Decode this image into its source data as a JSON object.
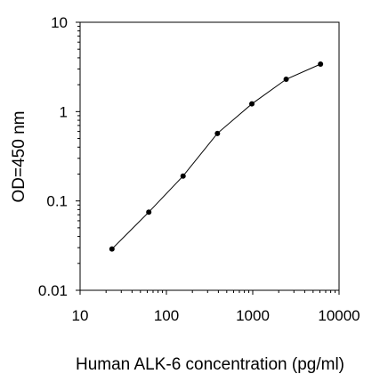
{
  "chart_data": {
    "type": "scatter",
    "title": "",
    "xlabel": "Human ALK-6 concentration (pg/ml)",
    "ylabel": "OD=450 nm",
    "x_scale": "log",
    "y_scale": "log",
    "xlim": [
      10,
      10000
    ],
    "ylim": [
      0.01,
      10
    ],
    "x_ticks": [
      10,
      100,
      1000,
      10000
    ],
    "x_tick_labels": [
      "10",
      "100",
      "1000",
      "10000"
    ],
    "y_ticks": [
      0.01,
      0.1,
      1,
      10
    ],
    "y_tick_labels": [
      "0.01",
      "0.1",
      "1",
      "10"
    ],
    "grid": false,
    "legend": "none",
    "series": [
      {
        "x": [
          23.4,
          62.5,
          156,
          390,
          977,
          2440,
          6100
        ],
        "y": [
          0.029,
          0.075,
          0.19,
          0.57,
          1.22,
          2.3,
          3.4
        ]
      }
    ],
    "colors": {
      "line": "#000000",
      "marker": "#000000",
      "axes": "#000000"
    }
  }
}
